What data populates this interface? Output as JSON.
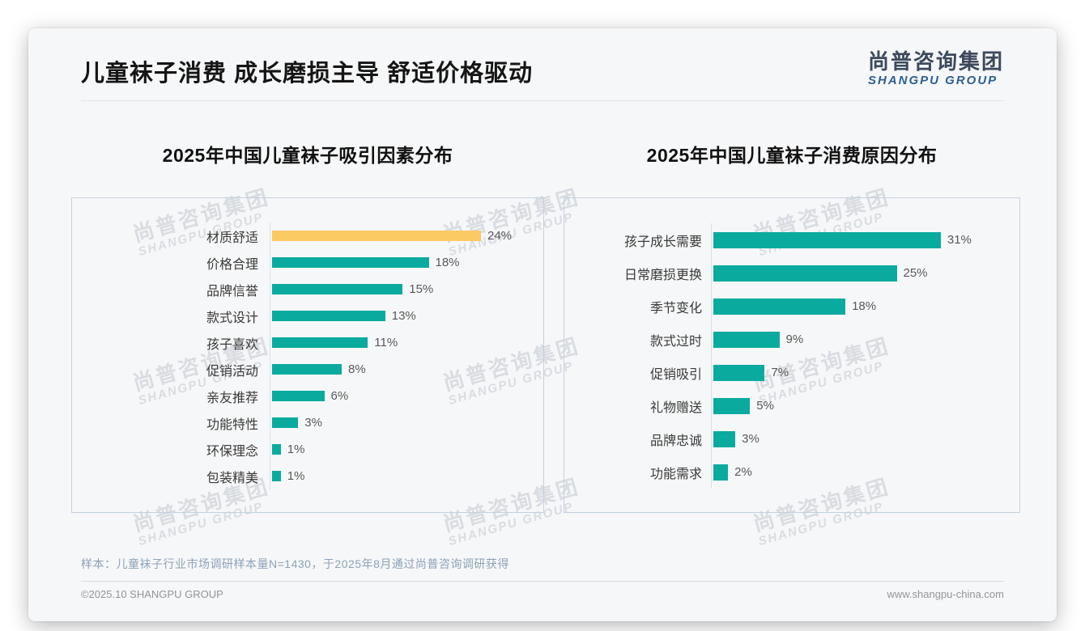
{
  "page": {
    "title": "儿童袜子消费 成长磨损主导 舒适价格驱动",
    "logo": {
      "cn": "尚普咨询集团",
      "en": "SHANGPU GROUP"
    },
    "watermark": {
      "cn": "尚普咨询集团",
      "en": "SHANGPU GROUP"
    },
    "footnote": "样本：儿童袜子行业市场调研样本量N=1430，于2025年8月通过尚普咨询调研获得",
    "footer_left": "©2025.10 SHANGPU GROUP",
    "footer_right": "www.shangpu-china.com"
  },
  "colors": {
    "teal": "#0aab9e",
    "highlight_yellow": "#fbca63",
    "logo_blue": "#2e5f94",
    "logo_gray": "#3d4a5c"
  },
  "chart_data": [
    {
      "type": "bar",
      "orientation": "horizontal",
      "title": "2025年中国儿童袜子吸引因素分布",
      "categories": [
        "材质舒适",
        "价格合理",
        "品牌信誉",
        "款式设计",
        "孩子喜欢",
        "促销活动",
        "亲友推荐",
        "功能特性",
        "环保理念",
        "包装精美"
      ],
      "values": [
        24,
        18,
        15,
        13,
        11,
        8,
        6,
        3,
        1,
        1
      ],
      "unit": "%",
      "bar_color": "#0aab9e",
      "highlight_index": 0,
      "highlight_color": "#fbca63",
      "value_labels_shown": true,
      "grid": false,
      "legend": false
    },
    {
      "type": "bar",
      "orientation": "horizontal",
      "title": "2025年中国儿童袜子消费原因分布",
      "categories": [
        "孩子成长需要",
        "日常磨损更换",
        "季节变化",
        "款式过时",
        "促销吸引",
        "礼物赠送",
        "品牌忠诚",
        "功能需求"
      ],
      "values": [
        31,
        25,
        18,
        9,
        7,
        5,
        3,
        2
      ],
      "unit": "%",
      "bar_color": "#0aab9e",
      "value_labels_shown": true,
      "grid": false,
      "legend": false
    }
  ]
}
